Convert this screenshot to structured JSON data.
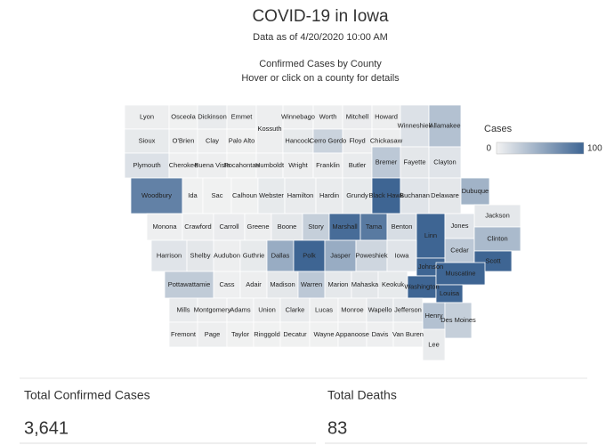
{
  "header": {
    "title": "COVID-19 in Iowa",
    "subtitle": "Data as of 4/20/2020 10:00 AM"
  },
  "map": {
    "title": "Confirmed Cases by County",
    "hint": "Hover or click on a county for details",
    "legend": {
      "title": "Cases",
      "min": 0,
      "max": 100,
      "low_color": "#f2f2f2",
      "high_color": "#3e6593"
    },
    "counties": [
      {
        "name": "Lyon",
        "cases": 3
      },
      {
        "name": "Osceola",
        "cases": 1
      },
      {
        "name": "Dickinson",
        "cases": 5
      },
      {
        "name": "Emmet",
        "cases": 2
      },
      {
        "name": "Kossuth",
        "cases": 3
      },
      {
        "name": "Winnebago",
        "cases": 2
      },
      {
        "name": "Worth",
        "cases": 2
      },
      {
        "name": "Mitchell",
        "cases": 4
      },
      {
        "name": "Howard",
        "cases": 3
      },
      {
        "name": "Winneshiek",
        "cases": 12
      },
      {
        "name": "Allamakee",
        "cases": 35
      },
      {
        "name": "Sioux",
        "cases": 6
      },
      {
        "name": "O'Brien",
        "cases": 2
      },
      {
        "name": "Clay",
        "cases": 2
      },
      {
        "name": "Palo Alto",
        "cases": 1
      },
      {
        "name": "Hancock",
        "cases": 6
      },
      {
        "name": "Cerro Gordo",
        "cases": 22
      },
      {
        "name": "Floyd",
        "cases": 4
      },
      {
        "name": "Chickasaw",
        "cases": 3
      },
      {
        "name": "Plymouth",
        "cases": 12
      },
      {
        "name": "Cherokee",
        "cases": 2
      },
      {
        "name": "Buena Vista",
        "cases": 3
      },
      {
        "name": "Pocahontas",
        "cases": 1
      },
      {
        "name": "Humboldt",
        "cases": 3
      },
      {
        "name": "Wright",
        "cases": 3
      },
      {
        "name": "Franklin",
        "cases": 3
      },
      {
        "name": "Butler",
        "cases": 5
      },
      {
        "name": "Bremer",
        "cases": 30
      },
      {
        "name": "Fayette",
        "cases": 8
      },
      {
        "name": "Clayton",
        "cases": 10
      },
      {
        "name": "Woodbury",
        "cases": 80
      },
      {
        "name": "Ida",
        "cases": 1
      },
      {
        "name": "Sac",
        "cases": 1
      },
      {
        "name": "Calhoun",
        "cases": 1
      },
      {
        "name": "Webster",
        "cases": 6
      },
      {
        "name": "Hamilton",
        "cases": 5
      },
      {
        "name": "Hardin",
        "cases": 5
      },
      {
        "name": "Grundy",
        "cases": 6
      },
      {
        "name": "Black Hawk",
        "cases": 100
      },
      {
        "name": "Buchanan",
        "cases": 10
      },
      {
        "name": "Delaware",
        "cases": 8
      },
      {
        "name": "Dubuque",
        "cases": 45
      },
      {
        "name": "Jackson",
        "cases": 7
      },
      {
        "name": "Monona",
        "cases": 2
      },
      {
        "name": "Crawford",
        "cases": 3
      },
      {
        "name": "Carroll",
        "cases": 4
      },
      {
        "name": "Greene",
        "cases": 3
      },
      {
        "name": "Boone",
        "cases": 8
      },
      {
        "name": "Story",
        "cases": 25
      },
      {
        "name": "Marshall",
        "cases": 95
      },
      {
        "name": "Tama",
        "cases": 85
      },
      {
        "name": "Benton",
        "cases": 15
      },
      {
        "name": "Linn",
        "cases": 100
      },
      {
        "name": "Jones",
        "cases": 10
      },
      {
        "name": "Harrison",
        "cases": 10
      },
      {
        "name": "Shelby",
        "cases": 8
      },
      {
        "name": "Audubon",
        "cases": 3
      },
      {
        "name": "Guthrie",
        "cases": 6
      },
      {
        "name": "Dallas",
        "cases": 50
      },
      {
        "name": "Polk",
        "cases": 100
      },
      {
        "name": "Jasper",
        "cases": 50
      },
      {
        "name": "Poweshiek",
        "cases": 20
      },
      {
        "name": "Iowa",
        "cases": 10
      },
      {
        "name": "Johnson",
        "cases": 100
      },
      {
        "name": "Cedar",
        "cases": 30
      },
      {
        "name": "Clinton",
        "cases": 40
      },
      {
        "name": "Scott",
        "cases": 100
      },
      {
        "name": "Pottawattamie",
        "cases": 28
      },
      {
        "name": "Cass",
        "cases": 2
      },
      {
        "name": "Adair",
        "cases": 3
      },
      {
        "name": "Madison",
        "cases": 8
      },
      {
        "name": "Warren",
        "cases": 30
      },
      {
        "name": "Marion",
        "cases": 7
      },
      {
        "name": "Mahaska",
        "cases": 8
      },
      {
        "name": "Keokuk",
        "cases": 6
      },
      {
        "name": "Washington",
        "cases": 100
      },
      {
        "name": "Muscatine",
        "cases": 100
      },
      {
        "name": "Louisa",
        "cases": 100
      },
      {
        "name": "Mills",
        "cases": 5
      },
      {
        "name": "Montgomery",
        "cases": 3
      },
      {
        "name": "Adams",
        "cases": 2
      },
      {
        "name": "Union",
        "cases": 3
      },
      {
        "name": "Clarke",
        "cases": 5
      },
      {
        "name": "Lucas",
        "cases": 3
      },
      {
        "name": "Monroe",
        "cases": 3
      },
      {
        "name": "Wapello",
        "cases": 8
      },
      {
        "name": "Jefferson",
        "cases": 7
      },
      {
        "name": "Henry",
        "cases": 35
      },
      {
        "name": "Des Moines",
        "cases": 25
      },
      {
        "name": "Fremont",
        "cases": 3
      },
      {
        "name": "Page",
        "cases": 3
      },
      {
        "name": "Taylor",
        "cases": 1
      },
      {
        "name": "Ringgold",
        "cases": 1
      },
      {
        "name": "Decatur",
        "cases": 1
      },
      {
        "name": "Wayne",
        "cases": 1
      },
      {
        "name": "Appanoose",
        "cases": 3
      },
      {
        "name": "Davis",
        "cases": 2
      },
      {
        "name": "Van Buren",
        "cases": 2
      },
      {
        "name": "Lee",
        "cases": 5
      }
    ]
  },
  "summary": [
    {
      "label": "Total Confirmed Cases",
      "value": "3,641"
    },
    {
      "label": "Total Deaths",
      "value": "83"
    }
  ]
}
